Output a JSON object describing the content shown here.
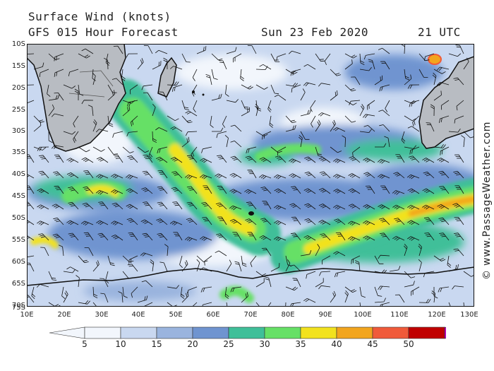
{
  "header": {
    "title": "Surface Wind (knots)",
    "forecast": "GFS 015 Hour Forecast",
    "date": "Sun 23 Feb 2020",
    "time": "21 UTC"
  },
  "credit": "© www.PassageWeather.com",
  "map": {
    "region": "Southern Indian Ocean",
    "lat_labels": [
      "10S",
      "15S",
      "20S",
      "25S",
      "30S",
      "35S",
      "40S",
      "45S",
      "50S",
      "55S",
      "60S",
      "65S",
      "70S",
      "75S"
    ],
    "lon_labels": [
      "10E",
      "20E",
      "30E",
      "40E",
      "50E",
      "60E",
      "70E",
      "80E",
      "90E",
      "100E",
      "110E",
      "120E",
      "130E"
    ]
  },
  "legend": {
    "unit": "knots",
    "ticks": [
      "5",
      "10",
      "15",
      "20",
      "25",
      "30",
      "35",
      "40",
      "45",
      "50"
    ],
    "colors": [
      "#f2f6fc",
      "#c9d8f0",
      "#9ab4de",
      "#6f94d0",
      "#3fbf99",
      "#66e066",
      "#f2e21e",
      "#f2a51e",
      "#f05a3a",
      "#c00000",
      "#c000c0"
    ]
  },
  "colors": {
    "land": "#b8bcc2",
    "coast": "#111111",
    "barb": "#111111"
  }
}
